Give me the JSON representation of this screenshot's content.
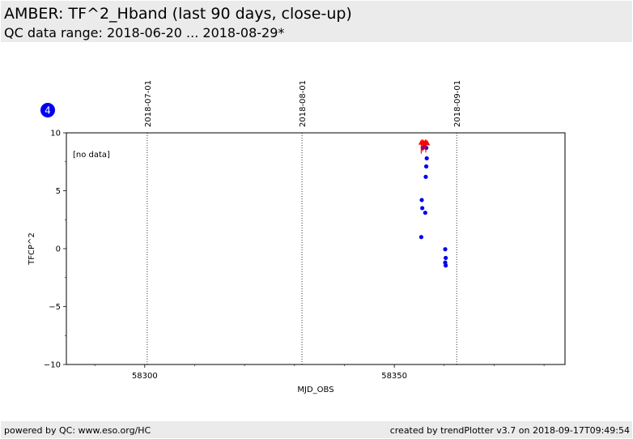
{
  "header": {
    "title": "AMBER: TF^2_Hband (last 90 days, close-up)",
    "subtitle": "QC data range: 2018-06-20 ... 2018-08-29*"
  },
  "badge": {
    "label": "4",
    "color": "#0000ee"
  },
  "footer": {
    "left": "powered by QC: www.eso.org/HC",
    "right": "created by trendPlotter v3.7 on 2018-09-17T09:49:54"
  },
  "chart_data": {
    "type": "scatter",
    "xlabel": "MJD_OBS",
    "ylabel": "TFCP^2",
    "xlim": [
      58284.3,
      58384.2
    ],
    "ylim": [
      -10,
      10
    ],
    "xticks": [
      58300,
      58350
    ],
    "yticks": [
      10,
      5,
      0,
      -5,
      -10
    ],
    "ytick_labels": [
      "10",
      "5",
      "0",
      "−5",
      "−10"
    ],
    "x_minor_step": 10,
    "y_minor_step": 2.5,
    "annotation": "[no data]",
    "month_markers": [
      {
        "label": "2018-07-01",
        "x": 58300.5
      },
      {
        "label": "2018-08-01",
        "x": 58331.5
      },
      {
        "label": "2018-09-01",
        "x": 58362.5
      }
    ],
    "series": [
      {
        "color": "#0000ee",
        "marker": "circle",
        "points": [
          [
            58355.4,
            1.0
          ],
          [
            58355.5,
            4.2
          ],
          [
            58355.6,
            3.5
          ],
          [
            58356.2,
            3.1
          ],
          [
            58356.3,
            6.2
          ],
          [
            58356.4,
            7.1
          ],
          [
            58356.5,
            7.8
          ],
          [
            58355.7,
            8.7
          ],
          [
            58356.0,
            8.9
          ],
          [
            58356.4,
            8.7
          ],
          [
            58360.2,
            -0.05
          ],
          [
            58360.3,
            -0.8
          ],
          [
            58360.2,
            -1.2
          ],
          [
            58360.3,
            -1.45
          ]
        ]
      },
      {
        "color": "#ff0000",
        "marker": "triangle-up",
        "points": [
          [
            58355.4,
            9.15
          ],
          [
            58355.7,
            9.2
          ],
          [
            58356.0,
            9.1
          ],
          [
            58356.3,
            9.2
          ],
          [
            58356.6,
            9.1
          ]
        ],
        "error_bars": [
          [
            58355.4,
            8.2,
            9.15
          ],
          [
            58355.7,
            8.4,
            9.2
          ],
          [
            58356.0,
            8.6,
            9.1
          ],
          [
            58356.3,
            8.3,
            9.2
          ]
        ]
      }
    ]
  }
}
